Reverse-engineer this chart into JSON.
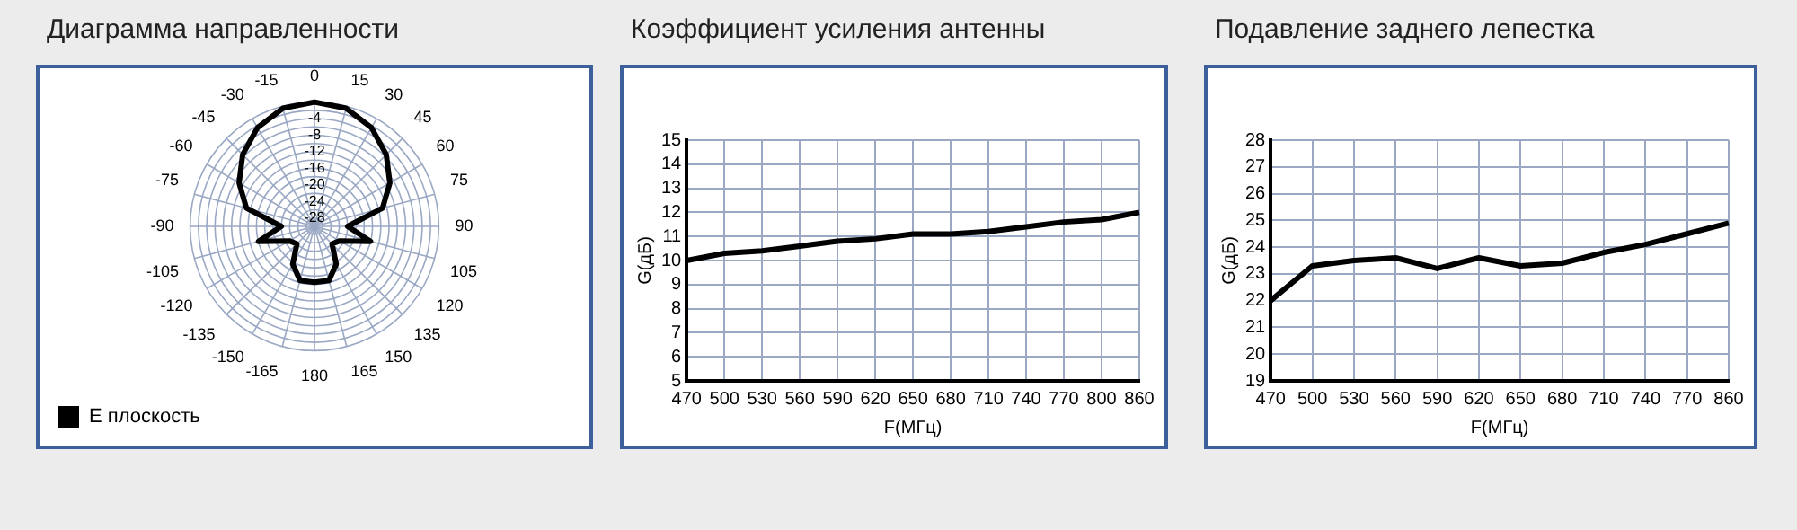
{
  "chart_data": [
    {
      "type": "radar",
      "title": "Диаграмма направленности",
      "categories": [
        "0",
        "15",
        "30",
        "45",
        "60",
        "75",
        "90",
        "105",
        "120",
        "135",
        "150",
        "165",
        "180",
        "-165",
        "-150",
        "-135",
        "-120",
        "-105",
        "-90",
        "-75",
        "-60",
        "-45",
        "-30",
        "-15"
      ],
      "series": [
        {
          "name": "E плоскость",
          "color": "#000000",
          "values": [
            0,
            -0.5,
            -2.5,
            -5.5,
            -9,
            -13,
            -22,
            -16,
            -23,
            -24,
            -19.5,
            -16.5,
            -16.5,
            -16.5,
            -19.5,
            -24,
            -23,
            -16,
            -22,
            -13,
            -9,
            -5.5,
            -2.5,
            -0.5
          ]
        }
      ],
      "ylim": [
        -30,
        0
      ],
      "yticks": [
        -28,
        -24,
        -20,
        -16,
        -12,
        -8,
        -4
      ],
      "grid": true,
      "legend": "bottom left",
      "marker": "none"
    },
    {
      "type": "line",
      "title": "Коэффициент усиления антенны",
      "xlabel": "F(МГц)",
      "ylabel": "G(дБ)",
      "categories": [
        "470",
        "500",
        "530",
        "560",
        "590",
        "620",
        "650",
        "680",
        "710",
        "740",
        "770",
        "800",
        "860"
      ],
      "series": [
        {
          "color": "#000000",
          "values": [
            10.0,
            10.3,
            10.4,
            10.6,
            10.8,
            10.9,
            11.1,
            11.1,
            11.2,
            11.4,
            11.6,
            11.7,
            12.0
          ]
        }
      ],
      "ylim": [
        5,
        15
      ],
      "yticks": [
        5,
        6,
        7,
        8,
        9,
        10,
        11,
        12,
        13,
        14,
        15
      ],
      "grid": true,
      "legend": false,
      "marker": "none"
    },
    {
      "type": "line",
      "title": "Подавление заднего лепестка",
      "xlabel": "F(МГц)",
      "ylabel": "G(дБ)",
      "categories": [
        "470",
        "500",
        "530",
        "560",
        "590",
        "620",
        "650",
        "680",
        "710",
        "740",
        "770",
        "860"
      ],
      "series": [
        {
          "color": "#000000",
          "values": [
            22.0,
            23.3,
            23.5,
            23.6,
            23.2,
            23.6,
            23.3,
            23.4,
            23.8,
            24.1,
            24.5,
            24.9
          ]
        }
      ],
      "ylim": [
        19,
        28
      ],
      "yticks": [
        19,
        20,
        21,
        22,
        23,
        24,
        25,
        26,
        27,
        28
      ],
      "grid": true,
      "legend": false,
      "marker": "none"
    }
  ]
}
